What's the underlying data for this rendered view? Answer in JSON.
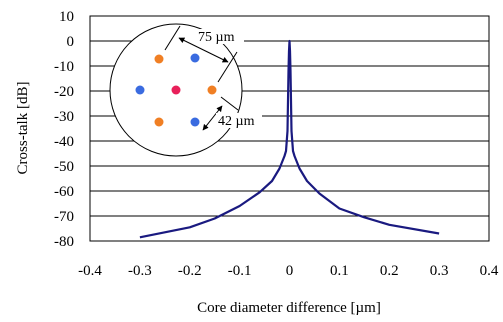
{
  "chart_data": {
    "type": "line",
    "xlabel": "Core diameter difference [µm]",
    "ylabel": "Cross-talk [dB]",
    "xlim": [
      -0.4,
      0.4
    ],
    "ylim": [
      -80,
      10
    ],
    "x_ticks": [
      -0.4,
      -0.3,
      -0.2,
      -0.1,
      0,
      0.1,
      0.2,
      0.3,
      0.4
    ],
    "x_tick_labels": [
      "-0.4",
      "-0.3",
      "-0.2",
      "-0.1",
      "0",
      "0.1",
      "0.2",
      "0.3",
      "0.4"
    ],
    "y_ticks": [
      10,
      0,
      -10,
      -20,
      -30,
      -40,
      -50,
      -60,
      -70,
      -80
    ],
    "y_tick_labels": [
      "10",
      "0",
      "-10",
      "-20",
      "-30",
      "-40",
      "-50",
      "-60",
      "-70",
      "-80"
    ],
    "grid": "horizontal",
    "line_color": "#1a1a80",
    "series": [
      {
        "x": [
          -0.3,
          -0.2,
          -0.15,
          -0.1,
          -0.06,
          -0.035,
          -0.02,
          -0.01,
          -0.007,
          -0.004,
          -0.003,
          -0.002,
          -0.001,
          0,
          0.001,
          0.002,
          0.003,
          0.004,
          0.007,
          0.01,
          0.02,
          0.035,
          0.06,
          0.1,
          0.15,
          0.2,
          0.3
        ],
        "y": [
          -78.5,
          -74.5,
          -71,
          -66,
          -60.5,
          -56,
          -51,
          -46,
          -44,
          -36,
          -24,
          -12,
          -4,
          0,
          -4,
          -12,
          -24,
          -36,
          -44,
          -46,
          -51,
          -56,
          -61,
          -67,
          -70.5,
          -73.5,
          -77
        ]
      }
    ],
    "inset": {
      "label_pitch": "75 µm",
      "label_spacing": "42 µm",
      "core_colors": {
        "center": "#e8205a",
        "orange": "#f07f24",
        "blue": "#3a6be0"
      }
    }
  }
}
